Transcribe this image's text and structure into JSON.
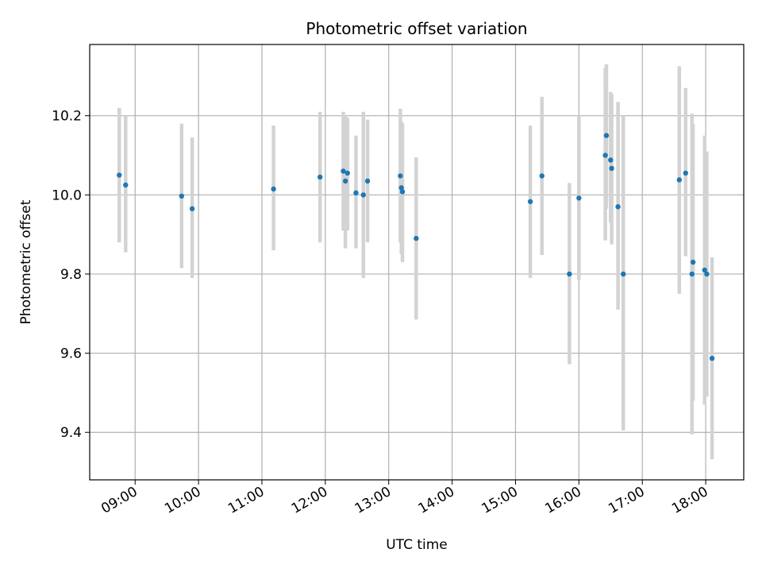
{
  "chart_data": {
    "type": "scatter",
    "title": "Photometric offset variation",
    "xlabel": "UTC time",
    "ylabel": "Photometric offset",
    "x_unit": "UTC time (HH:MM)",
    "xlim": [
      "08:17",
      "18:36"
    ],
    "ylim": [
      9.28,
      10.38
    ],
    "x_ticks": [
      "09:00",
      "10:00",
      "11:00",
      "12:00",
      "13:00",
      "14:00",
      "15:00",
      "16:00",
      "17:00",
      "18:00"
    ],
    "y_ticks": [
      9.4,
      9.6,
      9.8,
      10.0,
      10.2
    ],
    "y_tick_labels": [
      "9.4",
      "9.6",
      "9.8",
      "10.0",
      "10.2"
    ],
    "grid": true,
    "legend": "none",
    "colors": {
      "points": "#1f77b4",
      "error_bars": "#d3d3d3",
      "grid": "#b0b0b0"
    },
    "points": [
      {
        "x": "08:45",
        "y": 10.05,
        "ylow": 9.88,
        "yhigh": 10.22
      },
      {
        "x": "08:51",
        "y": 10.025,
        "ylow": 9.855,
        "yhigh": 10.2
      },
      {
        "x": "09:44",
        "y": 9.997,
        "ylow": 9.815,
        "yhigh": 10.18
      },
      {
        "x": "09:54",
        "y": 9.965,
        "ylow": 9.79,
        "yhigh": 10.145
      },
      {
        "x": "11:11",
        "y": 10.015,
        "ylow": 9.86,
        "yhigh": 10.175
      },
      {
        "x": "11:55",
        "y": 10.045,
        "ylow": 9.88,
        "yhigh": 10.21
      },
      {
        "x": "12:17",
        "y": 10.06,
        "ylow": 9.91,
        "yhigh": 10.21
      },
      {
        "x": "12:19",
        "y": 10.035,
        "ylow": 9.865,
        "yhigh": 10.2
      },
      {
        "x": "12:21",
        "y": 10.055,
        "ylow": 9.91,
        "yhigh": 10.195
      },
      {
        "x": "12:29",
        "y": 10.005,
        "ylow": 9.865,
        "yhigh": 10.15
      },
      {
        "x": "12:36",
        "y": 10.0,
        "ylow": 9.79,
        "yhigh": 10.21
      },
      {
        "x": "12:40",
        "y": 10.035,
        "ylow": 9.88,
        "yhigh": 10.19
      },
      {
        "x": "13:11",
        "y": 10.048,
        "ylow": 9.88,
        "yhigh": 10.218
      },
      {
        "x": "13:12",
        "y": 10.018,
        "ylow": 9.85,
        "yhigh": 10.185
      },
      {
        "x": "13:13",
        "y": 10.008,
        "ylow": 9.83,
        "yhigh": 10.18
      },
      {
        "x": "13:26",
        "y": 9.89,
        "ylow": 9.685,
        "yhigh": 10.095
      },
      {
        "x": "15:14",
        "y": 9.983,
        "ylow": 9.79,
        "yhigh": 10.175
      },
      {
        "x": "15:25",
        "y": 10.048,
        "ylow": 9.848,
        "yhigh": 10.248
      },
      {
        "x": "15:51",
        "y": 9.8,
        "ylow": 9.572,
        "yhigh": 10.03
      },
      {
        "x": "16:00",
        "y": 9.992,
        "ylow": 9.785,
        "yhigh": 10.2
      },
      {
        "x": "16:25",
        "y": 10.1,
        "ylow": 9.885,
        "yhigh": 10.32
      },
      {
        "x": "16:26",
        "y": 10.15,
        "ylow": 9.965,
        "yhigh": 10.33
      },
      {
        "x": "16:30",
        "y": 10.088,
        "ylow": 9.93,
        "yhigh": 10.26
      },
      {
        "x": "16:31",
        "y": 10.067,
        "ylow": 9.875,
        "yhigh": 10.255
      },
      {
        "x": "16:37",
        "y": 9.97,
        "ylow": 9.71,
        "yhigh": 10.235
      },
      {
        "x": "16:42",
        "y": 9.8,
        "ylow": 9.405,
        "yhigh": 10.2
      },
      {
        "x": "17:35",
        "y": 10.038,
        "ylow": 9.75,
        "yhigh": 10.325
      },
      {
        "x": "17:41",
        "y": 10.055,
        "ylow": 9.845,
        "yhigh": 10.27
      },
      {
        "x": "17:47",
        "y": 9.8,
        "ylow": 9.395,
        "yhigh": 10.205
      },
      {
        "x": "17:48",
        "y": 9.83,
        "ylow": 9.48,
        "yhigh": 10.18
      },
      {
        "x": "17:59",
        "y": 9.81,
        "ylow": 9.47,
        "yhigh": 10.15
      },
      {
        "x": "18:01",
        "y": 9.8,
        "ylow": 9.49,
        "yhigh": 10.11
      },
      {
        "x": "18:06",
        "y": 9.587,
        "ylow": 9.332,
        "yhigh": 9.842
      }
    ]
  }
}
